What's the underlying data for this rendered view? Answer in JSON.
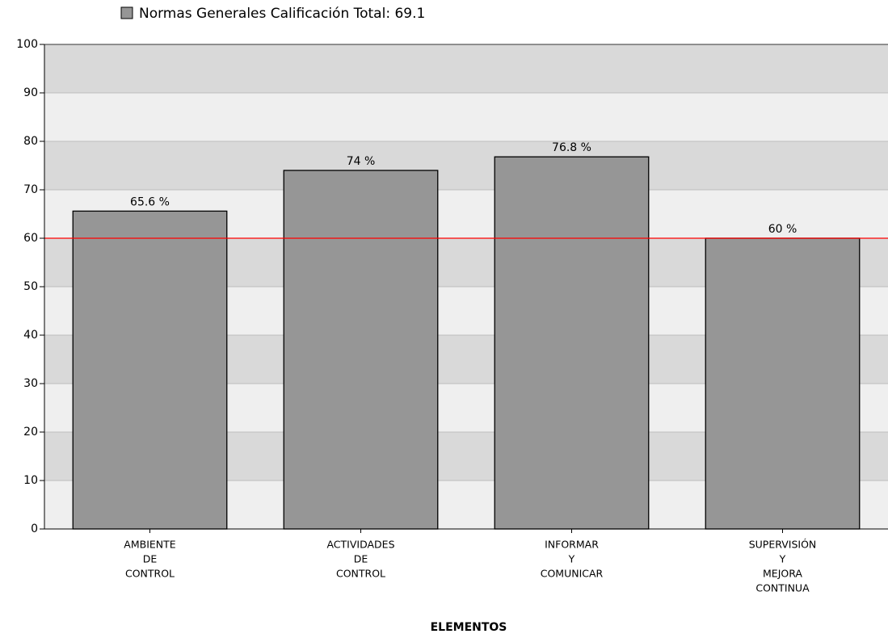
{
  "chart_data": {
    "type": "bar",
    "x_label": "ELEMENTOS",
    "categories": [
      [
        "AMBIENTE",
        "DE",
        "CONTROL"
      ],
      [
        "ACTIVIDADES",
        "DE",
        "CONTROL"
      ],
      [
        "INFORMAR",
        "Y",
        "COMUNICAR"
      ],
      [
        "SUPERVISIÓN",
        "Y",
        "MEJORA",
        "CONTINUA"
      ]
    ],
    "series": [
      {
        "name": "Normas Generales Calificación Total: 69.1",
        "color": "#969696",
        "values": [
          65.6,
          74,
          76.8,
          60
        ],
        "value_labels": [
          "65.6 %",
          "74 %",
          "76.8 %",
          "60 %"
        ]
      }
    ],
    "reference_line": {
      "value": 60,
      "color": "#ff0000"
    },
    "ylim": [
      0,
      100
    ],
    "yticks": [
      0,
      10,
      20,
      30,
      40,
      50,
      60,
      70,
      80,
      90,
      100
    ],
    "band_colors": [
      "#efefef",
      "#d9d9d9"
    ],
    "grid": true
  }
}
